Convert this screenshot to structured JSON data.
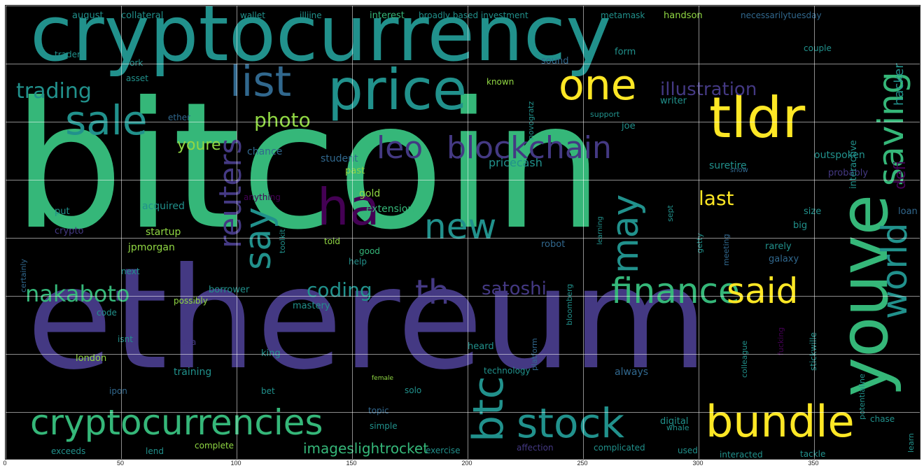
{
  "figure": {
    "background": "#000000",
    "grid": true,
    "x_ticks": [
      "0",
      "50",
      "100",
      "150",
      "200",
      "250",
      "300",
      "350"
    ]
  },
  "palette": {
    "purple": "#440154",
    "indigo": "#443983",
    "blue": "#31688e",
    "teal": "#21918c",
    "green": "#35b779",
    "lime": "#90d743",
    "yellow": "#fde725"
  },
  "words": [
    {
      "text": "bitcoin",
      "color": "green"
    },
    {
      "text": "ethereum",
      "color": "indigo"
    },
    {
      "text": "cryptocurrency",
      "color": "teal"
    },
    {
      "text": "price",
      "color": "teal"
    },
    {
      "text": "tldr",
      "color": "yellow"
    },
    {
      "text": "one",
      "color": "yellow"
    },
    {
      "text": "list",
      "color": "blue"
    },
    {
      "text": "sale",
      "color": "teal"
    },
    {
      "text": "trading",
      "color": "teal"
    },
    {
      "text": "leo",
      "color": "indigo"
    },
    {
      "text": "blockchain",
      "color": "indigo"
    },
    {
      "text": "ha",
      "color": "purple"
    },
    {
      "text": "new",
      "color": "teal"
    },
    {
      "text": "say",
      "color": "teal"
    },
    {
      "text": "reuters",
      "color": "indigo"
    },
    {
      "text": "may",
      "color": "teal"
    },
    {
      "text": "youve",
      "color": "green"
    },
    {
      "text": "saving",
      "color": "green"
    },
    {
      "text": "world",
      "color": "teal"
    },
    {
      "text": "btc",
      "color": "teal"
    },
    {
      "text": "finance",
      "color": "green"
    },
    {
      "text": "said",
      "color": "yellow"
    },
    {
      "text": "th",
      "color": "indigo"
    },
    {
      "text": "satoshi",
      "color": "indigo"
    },
    {
      "text": "coding",
      "color": "teal"
    },
    {
      "text": "nakaboto",
      "color": "green"
    },
    {
      "text": "cryptocurrencies",
      "color": "green"
    },
    {
      "text": "stock",
      "color": "teal"
    },
    {
      "text": "bundle",
      "color": "yellow"
    },
    {
      "text": "photo",
      "color": "lime"
    },
    {
      "text": "illustration",
      "color": "indigo"
    },
    {
      "text": "youre",
      "color": "lime"
    },
    {
      "text": "last",
      "color": "yellow"
    },
    {
      "text": "defi",
      "color": "purple"
    },
    {
      "text": "hacker",
      "color": "teal"
    },
    {
      "text": "imageslightrocket",
      "color": "green"
    },
    {
      "text": "pricecash",
      "color": "teal"
    },
    {
      "text": "student",
      "color": "blue"
    },
    {
      "text": "chance",
      "color": "blue"
    },
    {
      "text": "acquired",
      "color": "teal"
    },
    {
      "text": "startup",
      "color": "lime"
    },
    {
      "text": "jpmorgan",
      "color": "lime"
    },
    {
      "text": "crypto",
      "color": "indigo"
    },
    {
      "text": "put",
      "color": "teal"
    },
    {
      "text": "past",
      "color": "lime"
    },
    {
      "text": "anything",
      "color": "purple"
    },
    {
      "text": "gold",
      "color": "lime"
    },
    {
      "text": "extension",
      "color": "green"
    },
    {
      "text": "told",
      "color": "lime"
    },
    {
      "text": "good",
      "color": "green"
    },
    {
      "text": "help",
      "color": "teal"
    },
    {
      "text": "robot",
      "color": "blue"
    },
    {
      "text": "learning",
      "color": "teal"
    },
    {
      "text": "galaxy",
      "color": "blue"
    },
    {
      "text": "rarely",
      "color": "teal"
    },
    {
      "text": "big",
      "color": "teal"
    },
    {
      "text": "loan",
      "color": "blue"
    },
    {
      "text": "size",
      "color": "teal"
    },
    {
      "text": "probably",
      "color": "indigo"
    },
    {
      "text": "interactive",
      "color": "teal"
    },
    {
      "text": "outspoken",
      "color": "teal"
    },
    {
      "text": "suretire",
      "color": "teal"
    },
    {
      "text": "snow",
      "color": "blue"
    },
    {
      "text": "joe",
      "color": "teal"
    },
    {
      "text": "support",
      "color": "teal"
    },
    {
      "text": "writer",
      "color": "teal"
    },
    {
      "text": "novogratz",
      "color": "teal"
    },
    {
      "text": "known",
      "color": "lime"
    },
    {
      "text": "form",
      "color": "teal"
    },
    {
      "text": "sound",
      "color": "blue"
    },
    {
      "text": "couple",
      "color": "teal"
    },
    {
      "text": "metamask",
      "color": "teal"
    },
    {
      "text": "handson",
      "color": "lime"
    },
    {
      "text": "interest",
      "color": "green"
    },
    {
      "text": "august",
      "color": "teal"
    },
    {
      "text": "collateral",
      "color": "teal"
    },
    {
      "text": "wallet",
      "color": "teal"
    },
    {
      "text": "trader",
      "color": "teal"
    },
    {
      "text": "york",
      "color": "teal"
    },
    {
      "text": "asset",
      "color": "teal"
    },
    {
      "text": "ether",
      "color": "blue"
    },
    {
      "text": "next",
      "color": "teal"
    },
    {
      "text": "borrower",
      "color": "teal"
    },
    {
      "text": "possibly",
      "color": "lime"
    },
    {
      "text": "code",
      "color": "teal"
    },
    {
      "text": "mastery",
      "color": "teal"
    },
    {
      "text": "king",
      "color": "teal"
    },
    {
      "text": "london",
      "color": "lime"
    },
    {
      "text": "training",
      "color": "teal"
    },
    {
      "text": "bet",
      "color": "teal"
    },
    {
      "text": "ipon",
      "color": "blue"
    },
    {
      "text": "technology",
      "color": "teal"
    },
    {
      "text": "heard",
      "color": "teal"
    },
    {
      "text": "always",
      "color": "blue"
    },
    {
      "text": "colleague",
      "color": "teal"
    },
    {
      "text": "solo",
      "color": "teal"
    },
    {
      "text": "topic",
      "color": "blue"
    },
    {
      "text": "simple",
      "color": "teal"
    },
    {
      "text": "digital",
      "color": "teal"
    },
    {
      "text": "complete",
      "color": "lime"
    },
    {
      "text": "lend",
      "color": "teal"
    },
    {
      "text": "exceeds",
      "color": "teal"
    },
    {
      "text": "exercise",
      "color": "teal"
    },
    {
      "text": "affection",
      "color": "indigo"
    },
    {
      "text": "complicated",
      "color": "teal"
    },
    {
      "text": "used",
      "color": "teal"
    },
    {
      "text": "interacted",
      "color": "teal"
    },
    {
      "text": "tackle",
      "color": "teal"
    },
    {
      "text": "chase",
      "color": "teal"
    },
    {
      "text": "stickwille",
      "color": "teal"
    },
    {
      "text": "whale",
      "color": "teal"
    },
    {
      "text": "platform",
      "color": "blue"
    },
    {
      "text": "bloomberg",
      "color": "teal"
    },
    {
      "text": "meeting",
      "color": "blue"
    },
    {
      "text": "getty",
      "color": "teal"
    },
    {
      "text": "sept",
      "color": "teal"
    },
    {
      "text": "learn",
      "color": "teal"
    },
    {
      "text": "isnt",
      "color": "teal"
    },
    {
      "text": "dea",
      "color": "indigo"
    },
    {
      "text": "fucking",
      "color": "purple"
    },
    {
      "text": "potentialine",
      "color": "teal"
    },
    {
      "text": "female",
      "color": "lime"
    },
    {
      "text": "toolkit",
      "color": "teal"
    },
    {
      "text": "certainly",
      "color": "blue"
    },
    {
      "text": "necessarilytuesday",
      "color": "blue"
    },
    {
      "text": "broadly based investment",
      "color": "teal"
    },
    {
      "text": "illiine",
      "color": "teal"
    }
  ]
}
